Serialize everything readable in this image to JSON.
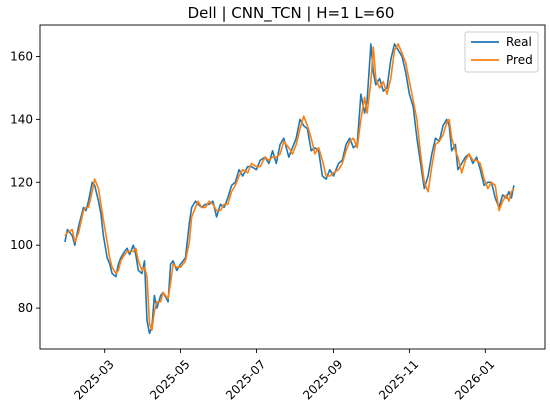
{
  "chart_data": {
    "type": "line",
    "title": "Dell | CNN_TCN | H=1 L=60",
    "xlabel": "",
    "ylabel": "",
    "xlim": [
      "2025-01-08",
      "2026-02-18"
    ],
    "ylim": [
      67,
      170
    ],
    "x_ticks": [
      {
        "date": "2025-03-01",
        "label": "2025-03"
      },
      {
        "date": "2025-05-01",
        "label": "2025-05"
      },
      {
        "date": "2025-07-01",
        "label": "2025-07"
      },
      {
        "date": "2025-09-01",
        "label": "2025-09"
      },
      {
        "date": "2025-11-01",
        "label": "2025-11"
      },
      {
        "date": "2026-01-01",
        "label": "2026-01"
      }
    ],
    "y_ticks": [
      80,
      100,
      120,
      140,
      160
    ],
    "legend": {
      "position": "top-right",
      "entries": [
        "Real",
        "Pred"
      ]
    },
    "grid": false,
    "series": [
      {
        "name": "Real",
        "color": "#1f77b4",
        "points": [
          [
            "2025-01-28",
            101
          ],
          [
            "2025-01-30",
            105
          ],
          [
            "2025-02-03",
            103
          ],
          [
            "2025-02-05",
            100
          ],
          [
            "2025-02-08",
            106
          ],
          [
            "2025-02-12",
            112
          ],
          [
            "2025-02-14",
            111
          ],
          [
            "2025-02-16",
            114
          ],
          [
            "2025-02-19",
            120
          ],
          [
            "2025-02-21",
            119
          ],
          [
            "2025-02-24",
            114
          ],
          [
            "2025-02-26",
            110
          ],
          [
            "2025-02-28",
            103
          ],
          [
            "2025-03-03",
            96
          ],
          [
            "2025-03-05",
            94
          ],
          [
            "2025-03-07",
            91
          ],
          [
            "2025-03-10",
            90
          ],
          [
            "2025-03-12",
            94
          ],
          [
            "2025-03-14",
            96
          ],
          [
            "2025-03-17",
            98
          ],
          [
            "2025-03-19",
            99
          ],
          [
            "2025-03-21",
            97
          ],
          [
            "2025-03-24",
            100
          ],
          [
            "2025-03-26",
            97
          ],
          [
            "2025-03-28",
            92
          ],
          [
            "2025-03-31",
            91
          ],
          [
            "2025-04-02",
            95
          ],
          [
            "2025-04-04",
            76
          ],
          [
            "2025-04-06",
            72
          ],
          [
            "2025-04-08",
            74
          ],
          [
            "2025-04-10",
            84
          ],
          [
            "2025-04-12",
            80
          ],
          [
            "2025-04-15",
            84
          ],
          [
            "2025-04-17",
            85
          ],
          [
            "2025-04-21",
            82
          ],
          [
            "2025-04-23",
            94
          ],
          [
            "2025-04-25",
            95
          ],
          [
            "2025-04-28",
            92
          ],
          [
            "2025-05-01",
            94
          ],
          [
            "2025-05-05",
            96
          ],
          [
            "2025-05-08",
            107
          ],
          [
            "2025-05-10",
            112
          ],
          [
            "2025-05-13",
            114
          ],
          [
            "2025-05-15",
            113
          ],
          [
            "2025-05-18",
            112
          ],
          [
            "2025-05-21",
            113
          ],
          [
            "2025-05-24",
            113
          ],
          [
            "2025-05-27",
            114
          ],
          [
            "2025-05-30",
            109
          ],
          [
            "2025-06-02",
            113
          ],
          [
            "2025-06-05",
            112
          ],
          [
            "2025-06-08",
            115
          ],
          [
            "2025-06-11",
            119
          ],
          [
            "2025-06-14",
            120
          ],
          [
            "2025-06-17",
            124
          ],
          [
            "2025-06-20",
            122
          ],
          [
            "2025-06-24",
            125
          ],
          [
            "2025-06-27",
            125
          ],
          [
            "2025-07-01",
            124
          ],
          [
            "2025-07-04",
            127
          ],
          [
            "2025-07-08",
            128
          ],
          [
            "2025-07-11",
            126
          ],
          [
            "2025-07-14",
            130
          ],
          [
            "2025-07-17",
            126
          ],
          [
            "2025-07-20",
            132
          ],
          [
            "2025-07-23",
            134
          ],
          [
            "2025-07-27",
            128
          ],
          [
            "2025-07-30",
            131
          ],
          [
            "2025-08-02",
            134
          ],
          [
            "2025-08-05",
            140
          ],
          [
            "2025-08-08",
            138
          ],
          [
            "2025-08-11",
            137
          ],
          [
            "2025-08-14",
            130
          ],
          [
            "2025-08-17",
            131
          ],
          [
            "2025-08-20",
            130
          ],
          [
            "2025-08-23",
            122
          ],
          [
            "2025-08-26",
            121
          ],
          [
            "2025-08-29",
            124
          ],
          [
            "2025-09-01",
            122
          ],
          [
            "2025-09-05",
            126
          ],
          [
            "2025-09-08",
            127
          ],
          [
            "2025-09-11",
            132
          ],
          [
            "2025-09-14",
            134
          ],
          [
            "2025-09-17",
            131
          ],
          [
            "2025-09-20",
            132
          ],
          [
            "2025-09-23",
            148
          ],
          [
            "2025-09-26",
            142
          ],
          [
            "2025-09-28",
            146
          ],
          [
            "2025-10-01",
            164
          ],
          [
            "2025-10-03",
            155
          ],
          [
            "2025-10-05",
            151
          ],
          [
            "2025-10-08",
            153
          ],
          [
            "2025-10-11",
            149
          ],
          [
            "2025-10-14",
            150
          ],
          [
            "2025-10-17",
            159
          ],
          [
            "2025-10-20",
            164
          ],
          [
            "2025-10-23",
            162
          ],
          [
            "2025-10-26",
            160
          ],
          [
            "2025-10-29",
            155
          ],
          [
            "2025-11-01",
            148
          ],
          [
            "2025-11-04",
            144
          ],
          [
            "2025-11-07",
            134
          ],
          [
            "2025-11-10",
            126
          ],
          [
            "2025-11-13",
            118
          ],
          [
            "2025-11-16",
            122
          ],
          [
            "2025-11-19",
            129
          ],
          [
            "2025-11-22",
            134
          ],
          [
            "2025-11-25",
            133
          ],
          [
            "2025-11-28",
            138
          ],
          [
            "2025-12-01",
            140
          ],
          [
            "2025-12-03",
            138
          ],
          [
            "2025-12-05",
            130
          ],
          [
            "2025-12-08",
            132
          ],
          [
            "2025-12-10",
            124
          ],
          [
            "2025-12-13",
            126
          ],
          [
            "2025-12-16",
            128
          ],
          [
            "2025-12-19",
            129
          ],
          [
            "2025-12-22",
            126
          ],
          [
            "2025-12-25",
            128
          ],
          [
            "2025-12-28",
            124
          ],
          [
            "2025-12-31",
            119
          ],
          [
            "2026-01-03",
            120
          ],
          [
            "2026-01-06",
            120
          ],
          [
            "2026-01-09",
            115
          ],
          [
            "2026-01-12",
            112
          ],
          [
            "2026-01-15",
            116
          ],
          [
            "2026-01-18",
            115
          ],
          [
            "2026-01-20",
            117
          ],
          [
            "2026-01-22",
            115
          ],
          [
            "2026-01-24",
            119
          ]
        ]
      },
      {
        "name": "Pred",
        "color": "#ff7f0e",
        "points": [
          [
            "2025-01-28",
            103
          ],
          [
            "2025-01-30",
            104
          ],
          [
            "2025-02-03",
            105
          ],
          [
            "2025-02-05",
            101
          ],
          [
            "2025-02-08",
            104
          ],
          [
            "2025-02-12",
            111
          ],
          [
            "2025-02-14",
            112
          ],
          [
            "2025-02-16",
            112
          ],
          [
            "2025-02-19",
            117
          ],
          [
            "2025-02-21",
            121
          ],
          [
            "2025-02-24",
            118
          ],
          [
            "2025-02-26",
            113
          ],
          [
            "2025-02-28",
            108
          ],
          [
            "2025-03-03",
            101
          ],
          [
            "2025-03-05",
            96
          ],
          [
            "2025-03-07",
            93
          ],
          [
            "2025-03-10",
            91
          ],
          [
            "2025-03-12",
            92
          ],
          [
            "2025-03-14",
            95
          ],
          [
            "2025-03-17",
            97
          ],
          [
            "2025-03-19",
            98
          ],
          [
            "2025-03-21",
            98
          ],
          [
            "2025-03-24",
            98
          ],
          [
            "2025-03-26",
            99
          ],
          [
            "2025-03-28",
            95
          ],
          [
            "2025-03-31",
            92
          ],
          [
            "2025-04-02",
            93
          ],
          [
            "2025-04-04",
            90
          ],
          [
            "2025-04-06",
            75
          ],
          [
            "2025-04-08",
            73
          ],
          [
            "2025-04-10",
            79
          ],
          [
            "2025-04-12",
            82
          ],
          [
            "2025-04-15",
            82
          ],
          [
            "2025-04-17",
            85
          ],
          [
            "2025-04-21",
            83
          ],
          [
            "2025-04-23",
            88
          ],
          [
            "2025-04-25",
            94
          ],
          [
            "2025-04-28",
            93
          ],
          [
            "2025-05-01",
            93
          ],
          [
            "2025-05-05",
            95
          ],
          [
            "2025-05-08",
            101
          ],
          [
            "2025-05-10",
            109
          ],
          [
            "2025-05-13",
            112
          ],
          [
            "2025-05-15",
            114
          ],
          [
            "2025-05-18",
            112
          ],
          [
            "2025-05-21",
            112
          ],
          [
            "2025-05-24",
            114
          ],
          [
            "2025-05-27",
            113
          ],
          [
            "2025-05-30",
            111
          ],
          [
            "2025-06-02",
            111
          ],
          [
            "2025-06-05",
            113
          ],
          [
            "2025-06-08",
            113
          ],
          [
            "2025-06-11",
            117
          ],
          [
            "2025-06-14",
            119
          ],
          [
            "2025-06-17",
            122
          ],
          [
            "2025-06-20",
            124
          ],
          [
            "2025-06-24",
            123
          ],
          [
            "2025-06-27",
            126
          ],
          [
            "2025-07-01",
            125
          ],
          [
            "2025-07-04",
            125
          ],
          [
            "2025-07-08",
            128
          ],
          [
            "2025-07-11",
            127
          ],
          [
            "2025-07-14",
            128
          ],
          [
            "2025-07-17",
            128
          ],
          [
            "2025-07-20",
            129
          ],
          [
            "2025-07-23",
            133
          ],
          [
            "2025-07-27",
            131
          ],
          [
            "2025-07-30",
            129
          ],
          [
            "2025-08-02",
            132
          ],
          [
            "2025-08-05",
            137
          ],
          [
            "2025-08-08",
            141
          ],
          [
            "2025-08-11",
            138
          ],
          [
            "2025-08-14",
            134
          ],
          [
            "2025-08-17",
            129
          ],
          [
            "2025-08-20",
            131
          ],
          [
            "2025-08-23",
            127
          ],
          [
            "2025-08-26",
            122
          ],
          [
            "2025-08-29",
            122
          ],
          [
            "2025-09-01",
            123
          ],
          [
            "2025-09-05",
            124
          ],
          [
            "2025-09-08",
            126
          ],
          [
            "2025-09-11",
            130
          ],
          [
            "2025-09-14",
            133
          ],
          [
            "2025-09-17",
            134
          ],
          [
            "2025-09-20",
            131
          ],
          [
            "2025-09-23",
            140
          ],
          [
            "2025-09-26",
            147
          ],
          [
            "2025-09-28",
            142
          ],
          [
            "2025-10-01",
            152
          ],
          [
            "2025-10-03",
            163
          ],
          [
            "2025-10-05",
            153
          ],
          [
            "2025-10-08",
            150
          ],
          [
            "2025-10-11",
            152
          ],
          [
            "2025-10-14",
            148
          ],
          [
            "2025-10-17",
            153
          ],
          [
            "2025-10-20",
            162
          ],
          [
            "2025-10-23",
            164
          ],
          [
            "2025-10-26",
            161
          ],
          [
            "2025-10-29",
            158
          ],
          [
            "2025-11-01",
            152
          ],
          [
            "2025-11-04",
            146
          ],
          [
            "2025-11-07",
            140
          ],
          [
            "2025-11-10",
            129
          ],
          [
            "2025-11-13",
            120
          ],
          [
            "2025-11-16",
            117
          ],
          [
            "2025-11-19",
            125
          ],
          [
            "2025-11-22",
            132
          ],
          [
            "2025-11-25",
            133
          ],
          [
            "2025-11-28",
            135
          ],
          [
            "2025-12-01",
            139
          ],
          [
            "2025-12-03",
            140
          ],
          [
            "2025-12-05",
            134
          ],
          [
            "2025-12-08",
            130
          ],
          [
            "2025-12-10",
            128
          ],
          [
            "2025-12-13",
            123
          ],
          [
            "2025-12-16",
            127
          ],
          [
            "2025-12-19",
            129
          ],
          [
            "2025-12-22",
            127
          ],
          [
            "2025-12-25",
            127
          ],
          [
            "2025-12-28",
            126
          ],
          [
            "2025-12-31",
            121
          ],
          [
            "2026-01-03",
            118
          ],
          [
            "2026-01-06",
            120
          ],
          [
            "2026-01-09",
            119
          ],
          [
            "2026-01-12",
            111
          ],
          [
            "2026-01-15",
            114
          ],
          [
            "2026-01-18",
            116
          ],
          [
            "2026-01-20",
            114
          ],
          [
            "2026-01-22",
            117
          ],
          [
            "2026-01-24",
            118
          ]
        ]
      }
    ]
  }
}
